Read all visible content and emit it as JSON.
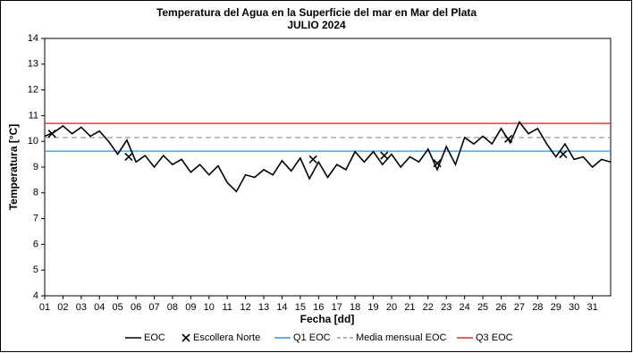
{
  "chart_data": {
    "type": "line",
    "title": "Temperatura del Agua en la Superficie del mar en Mar del Plata",
    "subtitle": "JULIO 2024",
    "x_label": "Fecha [dd]",
    "y_label": "Temperatura [°C]",
    "xlim": [
      1,
      32
    ],
    "ylim": [
      4,
      14
    ],
    "yticks": [
      4,
      5,
      6,
      7,
      8,
      9,
      10,
      11,
      12,
      13,
      14
    ],
    "xticks": [
      {
        "value": 1,
        "label": "01"
      },
      {
        "value": 2,
        "label": "02"
      },
      {
        "value": 3,
        "label": "03"
      },
      {
        "value": 4,
        "label": "04"
      },
      {
        "value": 5,
        "label": "05"
      },
      {
        "value": 6,
        "label": "06"
      },
      {
        "value": 7,
        "label": "07"
      },
      {
        "value": 8,
        "label": "08"
      },
      {
        "value": 9,
        "label": "09"
      },
      {
        "value": 10,
        "label": "10"
      },
      {
        "value": 11,
        "label": "11"
      },
      {
        "value": 12,
        "label": "12"
      },
      {
        "value": 13,
        "label": "13"
      },
      {
        "value": 14,
        "label": "14"
      },
      {
        "value": 15,
        "label": "15"
      },
      {
        "value": 16,
        "label": "16"
      },
      {
        "value": 17,
        "label": "17"
      },
      {
        "value": 18,
        "label": "18"
      },
      {
        "value": 19,
        "label": "19"
      },
      {
        "value": 20,
        "label": "20"
      },
      {
        "value": 21,
        "label": "21"
      },
      {
        "value": 22,
        "label": "22"
      },
      {
        "value": 23,
        "label": "23"
      },
      {
        "value": 24,
        "label": "24"
      },
      {
        "value": 25,
        "label": "25"
      },
      {
        "value": 26,
        "label": "26"
      },
      {
        "value": 27,
        "label": "27"
      },
      {
        "value": 28,
        "label": "28"
      },
      {
        "value": 29,
        "label": "29"
      },
      {
        "value": 30,
        "label": "30"
      },
      {
        "value": 31,
        "label": "31"
      }
    ],
    "grid": false,
    "series": [
      {
        "name": "EOC",
        "color": "#000000",
        "marker": "none",
        "x": [
          1,
          1.5,
          2,
          2.5,
          3,
          3.5,
          4,
          4.5,
          5,
          5.5,
          6,
          6.5,
          7,
          7.5,
          8,
          8.5,
          9,
          9.5,
          10,
          10.5,
          11,
          11.5,
          12,
          12.5,
          13,
          13.5,
          14,
          14.5,
          15,
          15.5,
          16,
          16.5,
          17,
          17.5,
          18,
          18.5,
          19,
          19.5,
          20,
          20.5,
          21,
          21.5,
          22,
          22.5,
          23,
          23.5,
          24,
          24.5,
          25,
          25.5,
          26,
          26.5,
          27,
          27.5,
          28,
          28.5,
          29,
          29.5,
          30,
          30.5,
          31,
          31.5,
          32
        ],
        "values": [
          10.2,
          10.35,
          10.6,
          10.3,
          10.55,
          10.2,
          10.4,
          10.0,
          9.5,
          10.05,
          9.2,
          9.45,
          9.0,
          9.45,
          9.1,
          9.3,
          8.8,
          9.1,
          8.7,
          9.05,
          8.4,
          8.05,
          8.7,
          8.6,
          8.9,
          8.7,
          9.25,
          8.85,
          9.35,
          8.55,
          9.2,
          8.6,
          9.1,
          8.9,
          9.6,
          9.2,
          9.6,
          9.1,
          9.5,
          9.0,
          9.4,
          9.2,
          9.7,
          8.9,
          9.8,
          9.1,
          10.15,
          9.9,
          10.2,
          9.9,
          10.5,
          9.95,
          10.75,
          10.3,
          10.5,
          9.9,
          9.4,
          9.9,
          9.3,
          9.4,
          9.0,
          9.3,
          9.2
        ]
      },
      {
        "name": "Escollera Norte",
        "color": "#000000",
        "marker": "x",
        "x": [
          1.4,
          5.6,
          15.7,
          19.6,
          22.5,
          26.4,
          29.4
        ],
        "values": [
          10.3,
          9.4,
          9.3,
          9.45,
          9.15,
          10.1,
          9.5
        ]
      }
    ],
    "hlines": [
      {
        "name": "Q1 EOC",
        "color": "#3a8fd0",
        "dash": false,
        "value": 9.62
      },
      {
        "name": "Media mensual EOC",
        "color": "#999999",
        "dash": true,
        "value": 10.15
      },
      {
        "name": "Q3  EOC",
        "color": "#e8262a",
        "dash": false,
        "value": 10.7
      }
    ]
  }
}
